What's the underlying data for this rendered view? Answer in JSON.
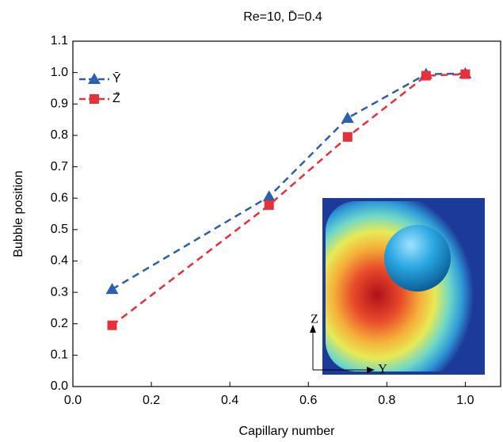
{
  "chart_data": {
    "type": "line",
    "title": "Re=10, D̄=0.4",
    "x_label": "Capillary number",
    "y_label": "Bubble position",
    "x": [
      0.1,
      0.5,
      0.7,
      0.9,
      1.0
    ],
    "series": [
      {
        "name": "Ȳ",
        "color": "#2b5fb0",
        "marker": "triangle",
        "values": [
          0.31,
          0.605,
          0.855,
          0.995,
          0.997
        ]
      },
      {
        "name": "Z̄",
        "color": "#e8303a",
        "marker": "square",
        "values": [
          0.195,
          0.578,
          0.795,
          0.99,
          0.995
        ]
      }
    ],
    "xlim": [
      0,
      1.09
    ],
    "ylim": [
      0,
      1.1
    ],
    "xticks": [
      {
        "value": 0,
        "label": "0.0"
      },
      {
        "value": 0.2,
        "label": "0.2"
      },
      {
        "value": 0.4,
        "label": "0.4"
      },
      {
        "value": 0.6,
        "label": "0.6"
      },
      {
        "value": 0.8,
        "label": "0.8"
      },
      {
        "value": 1.0,
        "label": "1.0"
      }
    ],
    "yticks": [
      {
        "value": 0,
        "label": "0.0"
      },
      {
        "value": 0.1,
        "label": "0.1"
      },
      {
        "value": 0.2,
        "label": "0.2"
      },
      {
        "value": 0.3,
        "label": "0.3"
      },
      {
        "value": 0.4,
        "label": "0.4"
      },
      {
        "value": 0.5,
        "label": "0.5"
      },
      {
        "value": 0.6,
        "label": "0.6"
      },
      {
        "value": 0.7,
        "label": "0.7"
      },
      {
        "value": 0.8,
        "label": "0.8"
      },
      {
        "value": 0.9,
        "label": "0.9"
      },
      {
        "value": 1.0,
        "label": "1.0"
      },
      {
        "value": 1.1,
        "label": "1.1"
      }
    ],
    "legend": "upper left",
    "grid": false,
    "inset_labels": {
      "vertical": "Z",
      "horizontal": "Y"
    }
  }
}
